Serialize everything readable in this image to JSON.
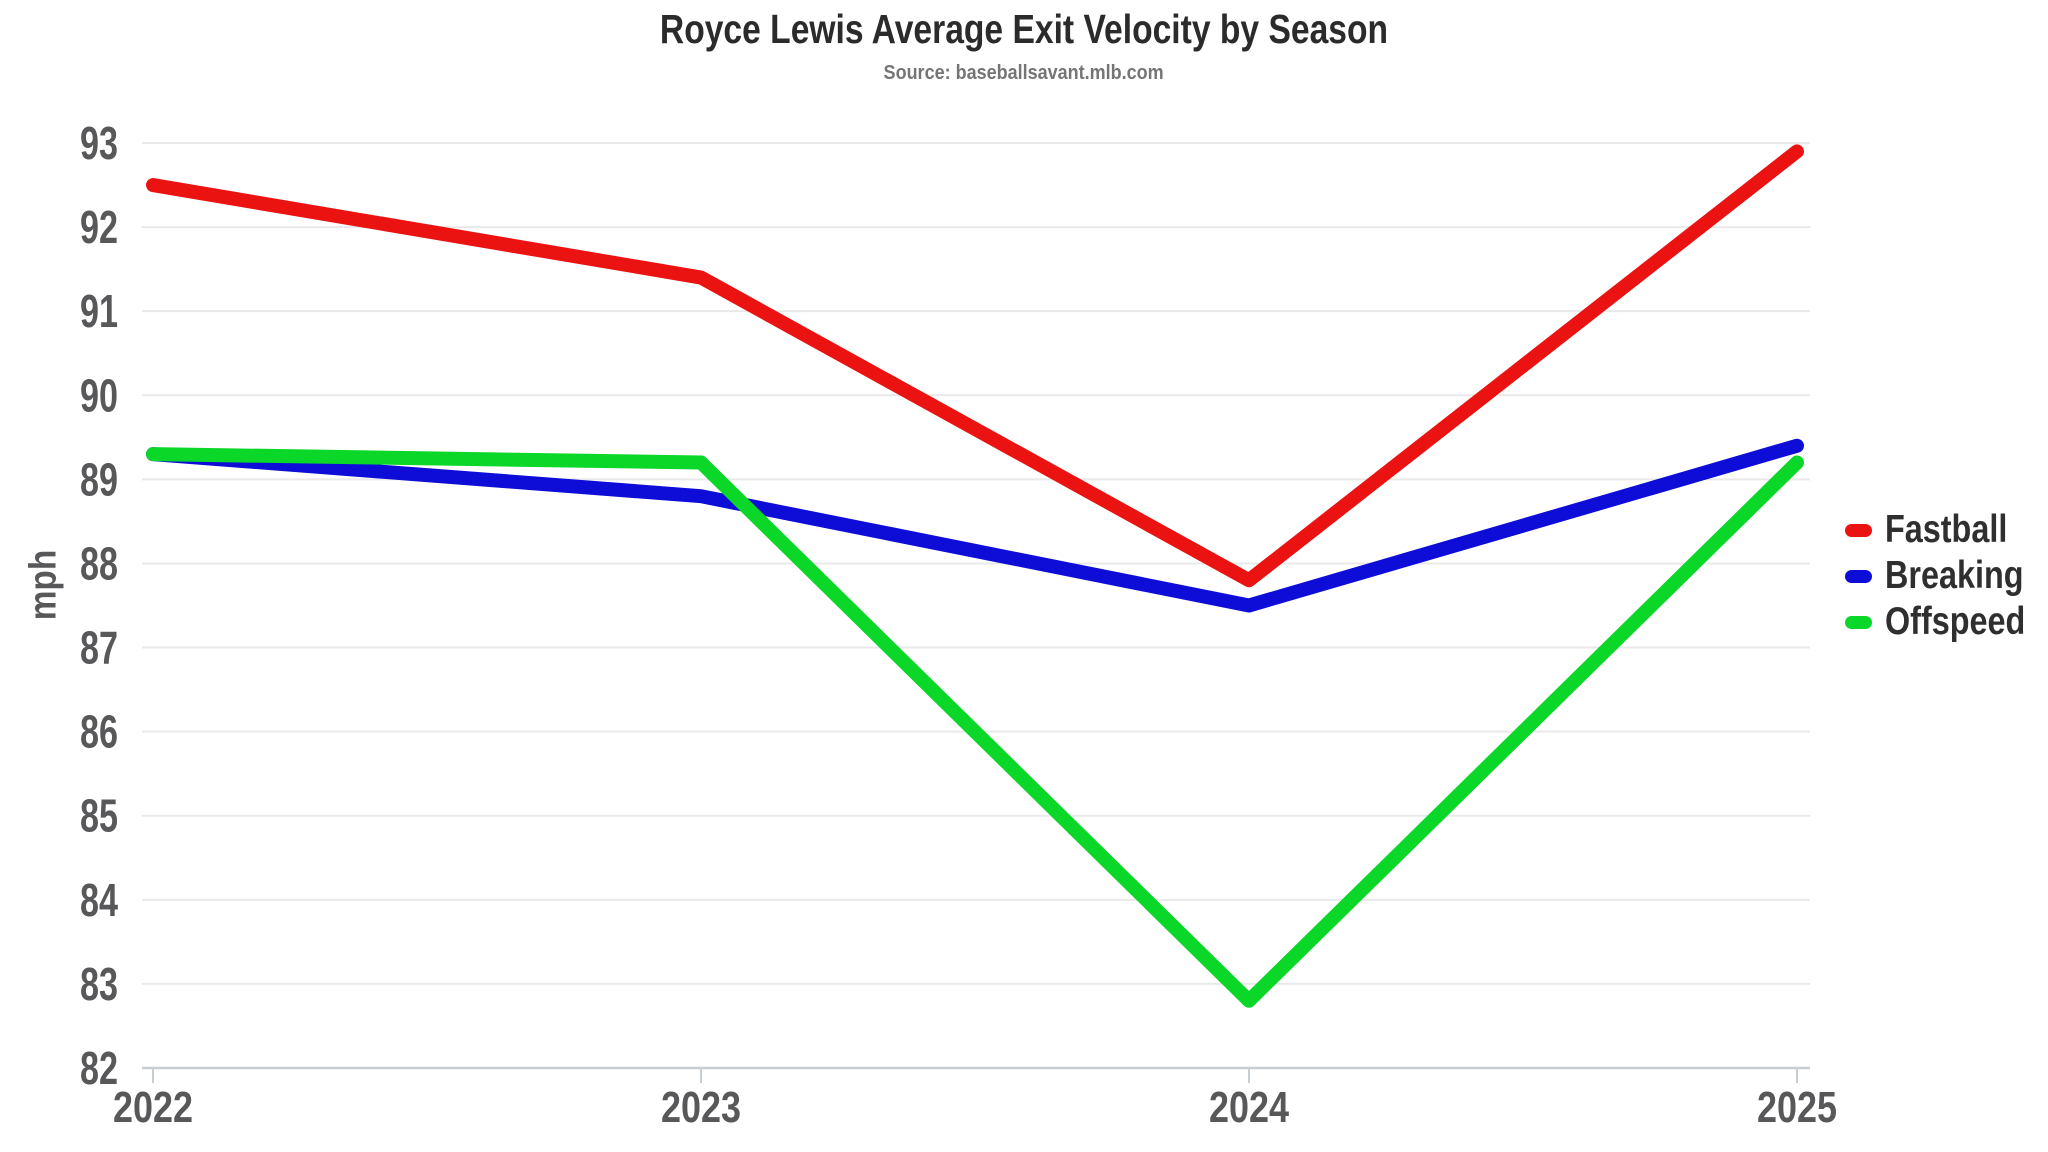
{
  "chart_data": {
    "type": "line",
    "title": "Royce Lewis Average Exit Velocity by Season",
    "subtitle": "Source: baseballsavant.mlb.com",
    "x_categories": [
      "2022",
      "2023",
      "2024",
      "2025"
    ],
    "series": [
      {
        "name": "Fastball",
        "color": "#eb1212",
        "values": [
          92.5,
          91.4,
          87.8,
          92.9
        ]
      },
      {
        "name": "Breaking",
        "color": "#0d0dd7",
        "values": [
          89.3,
          88.8,
          87.5,
          89.4
        ]
      },
      {
        "name": "Offspeed",
        "color": "#0ad728",
        "values": [
          89.3,
          89.2,
          82.8,
          89.2
        ]
      }
    ],
    "xlabel": "",
    "ylabel": "mph",
    "ylim": [
      82,
      93
    ],
    "ytick_step": 1,
    "grid": true,
    "legend_position": "right",
    "line_width": 14
  },
  "colors": {
    "background": "#ffffff",
    "grid_line": "#e9e9e9",
    "axis_line": "#c7ced3",
    "tick_label": "#58585a",
    "title_text": "#2b2b2b",
    "subtitle_text": "#757575",
    "legend_text": "#2f2f2f"
  }
}
